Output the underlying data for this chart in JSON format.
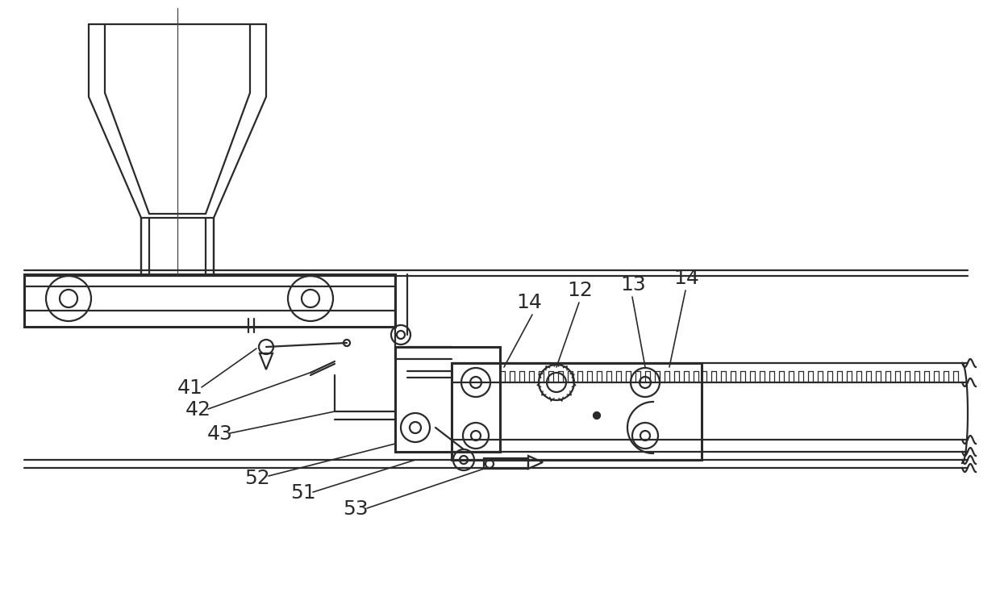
{
  "bg_color": "#ffffff",
  "line_color": "#2a2a2a",
  "lw": 1.6,
  "lw2": 2.2,
  "label_fs": 18
}
